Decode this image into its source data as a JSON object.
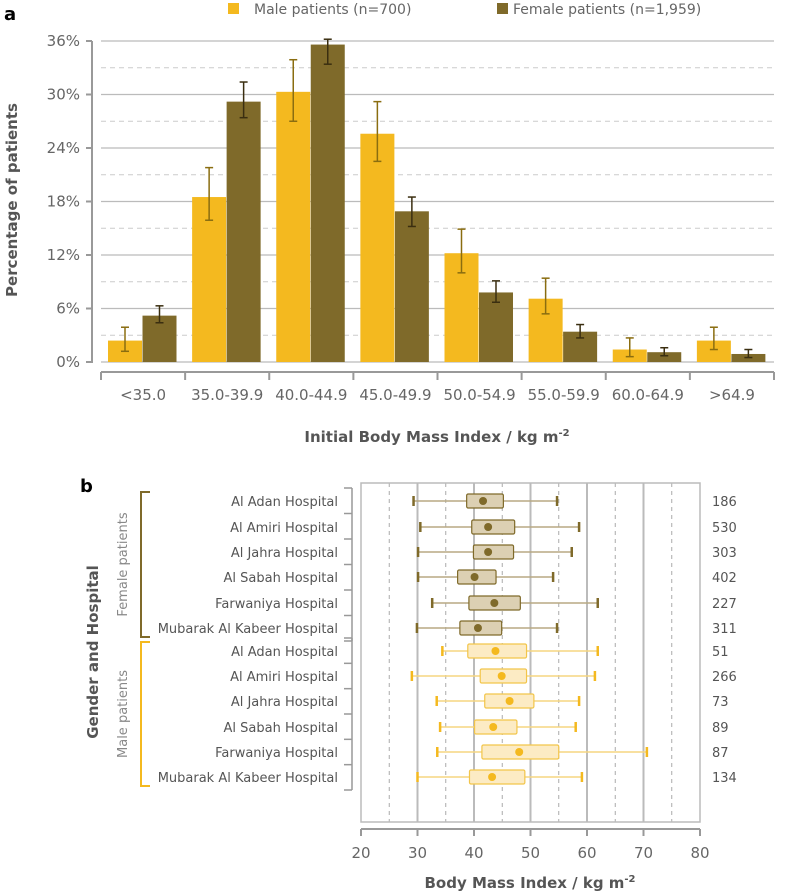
{
  "chart_data": [
    {
      "type": "bar",
      "panel_label": "a",
      "legend": [
        "Male patients (n=700)",
        "Female patients (n=1,959)"
      ],
      "legend_placement": "top",
      "categories": [
        "<35.0",
        "35.0-39.9",
        "40.0-44.9",
        "45.0-49.9",
        "50.0-54.9",
        "55.0-59.9",
        "60.0-64.9",
        ">64.9"
      ],
      "series": [
        {
          "name": "Male patients (n=700)",
          "color": "#F4B91F",
          "values": [
            2.4,
            18.5,
            30.3,
            25.6,
            12.2,
            7.1,
            1.4,
            2.4
          ],
          "err_low": [
            1.2,
            15.9,
            27.0,
            22.5,
            10.0,
            5.4,
            0.6,
            1.4
          ],
          "err_high": [
            3.9,
            21.8,
            33.9,
            29.2,
            14.9,
            9.4,
            2.7,
            3.9
          ]
        },
        {
          "name": "Female patients (n=1,959)",
          "color": "#7F6A2A",
          "values": [
            5.2,
            29.2,
            35.6,
            16.9,
            7.8,
            3.4,
            1.1,
            0.9
          ],
          "err_low": [
            4.4,
            27.4,
            33.4,
            15.2,
            6.7,
            2.7,
            0.7,
            0.5
          ],
          "err_high": [
            6.3,
            31.4,
            36.2,
            18.5,
            9.1,
            4.2,
            1.6,
            1.4
          ]
        }
      ],
      "xlabel": "Initial Body Mass Index / kg m",
      "xlabel_sup": "-2",
      "ylabel": "Percentage of patients",
      "ylim": [
        0,
        36
      ],
      "yticks": [
        "0%",
        "6%",
        "12%",
        "18%",
        "24%",
        "30%",
        "36%"
      ],
      "grid": true
    },
    {
      "type": "boxplot",
      "panel_label": "b",
      "ylabel": "Gender and Hospital",
      "xlabel": "Body Mass Index / kg m",
      "xlabel_sup": "-2",
      "xlim": [
        20,
        80
      ],
      "xticks": [
        "20",
        "30",
        "40",
        "50",
        "60",
        "70",
        "80"
      ],
      "groups": [
        {
          "name": "Female patients",
          "color": "#7F6A2A",
          "fill": "#DCD0B3",
          "rows": [
            {
              "hospital": "Al Adan Hospital",
              "n": "186",
              "min": 29.3,
              "q1": 38.7,
              "q3": 45.2,
              "mean": 41.6,
              "max": 54.7
            },
            {
              "hospital": "Al Amiri Hospital",
              "n": "530",
              "min": 30.5,
              "q1": 39.6,
              "q3": 47.2,
              "mean": 42.5,
              "max": 58.6
            },
            {
              "hospital": "Al Jahra Hospital",
              "n": "303",
              "min": 30.1,
              "q1": 39.9,
              "q3": 47.0,
              "mean": 42.5,
              "max": 57.3
            },
            {
              "hospital": "Al Sabah Hospital",
              "n": "402",
              "min": 30.1,
              "q1": 37.1,
              "q3": 43.9,
              "mean": 40.1,
              "max": 54.0
            },
            {
              "hospital": "Farwaniya Hospital",
              "n": "227",
              "min": 32.6,
              "q1": 39.1,
              "q3": 48.2,
              "mean": 43.6,
              "max": 61.9
            },
            {
              "hospital": "Mubarak Al Kabeer Hospital",
              "n": "311",
              "min": 29.9,
              "q1": 37.5,
              "q3": 44.9,
              "mean": 40.7,
              "max": 54.7
            }
          ]
        },
        {
          "name": "Male patients",
          "color": "#F4B91F",
          "fill": "#FCEBC4",
          "rows": [
            {
              "hospital": "Al Adan Hospital",
              "n": "51",
              "min": 34.4,
              "q1": 38.9,
              "q3": 49.3,
              "mean": 43.8,
              "max": 61.9
            },
            {
              "hospital": "Al Amiri Hospital",
              "n": "266",
              "min": 29.0,
              "q1": 41.1,
              "q3": 49.3,
              "mean": 44.9,
              "max": 61.4
            },
            {
              "hospital": "Al Jahra Hospital",
              "n": "73",
              "min": 33.4,
              "q1": 41.9,
              "q3": 50.6,
              "mean": 46.3,
              "max": 58.6
            },
            {
              "hospital": "Al Sabah Hospital",
              "n": "89",
              "min": 34.0,
              "q1": 40.1,
              "q3": 47.6,
              "mean": 43.4,
              "max": 58.0
            },
            {
              "hospital": "Farwaniya Hospital",
              "n": "87",
              "min": 33.5,
              "q1": 41.4,
              "q3": 55.0,
              "mean": 48.0,
              "max": 70.6
            },
            {
              "hospital": "Mubarak Al Kabeer Hospital",
              "n": "134",
              "min": 30.0,
              "q1": 39.2,
              "q3": 49.0,
              "mean": 43.2,
              "max": 59.1
            }
          ]
        }
      ]
    }
  ]
}
